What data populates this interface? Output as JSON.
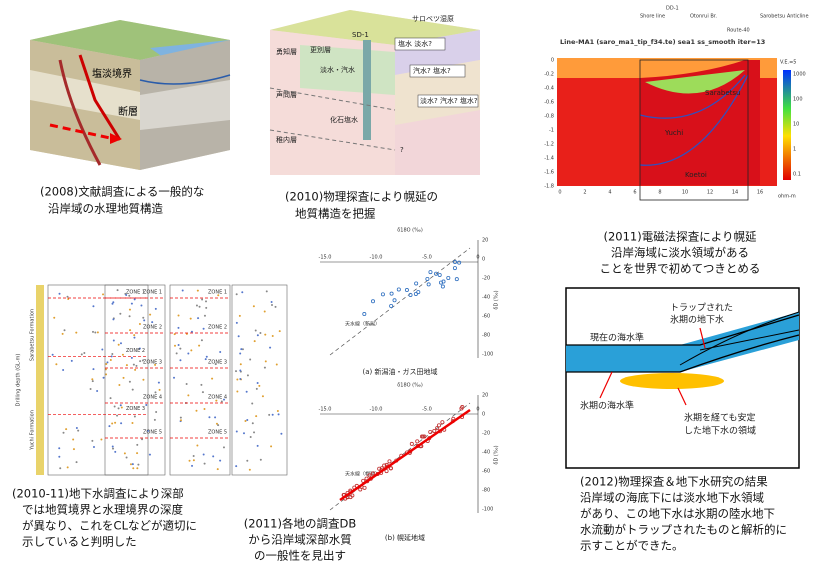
{
  "panels": [
    {
      "caption": [
        "(2008)文献調査による一般的な",
        "沿岸域の水理地質構造"
      ],
      "labels": [
        "塩淡境界",
        "断層"
      ]
    },
    {
      "caption": [
        "(2010)物理探査により幌延の",
        "地質構造を把握"
      ],
      "labels": [
        "サロベツ湿原",
        "SD-1",
        "塩水 淡水?",
        "淡水・汽水",
        "汽水? 塩水?",
        "淡水? 汽水? 塩水?",
        "化石塩水",
        "更別層",
        "勇知層",
        "声問層",
        "稚内層",
        "?"
      ]
    },
    {
      "caption": [
        "(2011)電磁法探査により幌延",
        "沿岸海域に淡水領域がある",
        "ことを世界で初めてつきとめる"
      ],
      "title": "Line-MA1 (saro_ma1_tip_f34.te) sea1 ss_smooth iter=13",
      "top_labels": [
        "DD-1",
        "Shore line",
        "Otonrui Br.",
        "Route-40",
        "Sarobetsu Anticline"
      ],
      "layers": [
        "Sarabetsu",
        "Yuchi",
        "Koetoi"
      ],
      "ve": "V.E.=5",
      "unit": "ohm-m",
      "xticks": [
        "0",
        "2",
        "4",
        "6",
        "8",
        "10",
        "12",
        "14",
        "16"
      ],
      "yticks": [
        "0",
        "-0.2",
        "-0.4",
        "-0.6",
        "-0.8",
        "-1",
        "-1.2",
        "-1.4",
        "-1.6",
        "-1.8"
      ],
      "cticks": [
        "1000",
        "100",
        "10",
        "1",
        "0.1"
      ]
    },
    {
      "caption": [
        "(2010-11)地下水調査により深部",
        "では地質境界と水理境界の深度",
        "が異なり、これをCLなどが適切に",
        "示していると判明した"
      ],
      "zones": [
        [
          "ZONE 1",
          "ZONE 2",
          "ZONE 3"
        ],
        [
          "ZONE 1",
          "ZONE 2",
          "ZONE 3",
          "ZONE 4",
          "ZONE 5"
        ],
        [
          "ZONE 1",
          "ZONE 2",
          "ZONE 3",
          "ZONE 4",
          "ZONE 5"
        ]
      ],
      "axis": "Drilling depth (GL-m)",
      "formations": [
        "Sarabetsu Formation",
        "Yuchi Formation"
      ]
    },
    {
      "caption": [
        "(2011)各地の調査DB",
        "から沿岸域深部水質",
        "の一般性を見出す"
      ],
      "xlabel": "δ18O (‰)",
      "ylabel": "δD (‰)",
      "xticks": [
        "-15.0",
        "-10.0",
        "-5.0",
        "0"
      ],
      "yticks": [
        "20",
        "0",
        "-20",
        "-40",
        "-60",
        "-80",
        "-100"
      ],
      "sub": [
        "(a) 新潟油・ガス田地域",
        "(b) 幌延地域"
      ],
      "notes": [
        "天水線（新潟）",
        "天水線（幌延）"
      ]
    },
    {
      "caption": [
        "(2012)物理探査＆地下水研究の結果",
        "沿岸域の海底下には淡水地下水領域",
        "があり、この地下水は氷期の陸水地下",
        "水流動がトラップされたものと解析的に",
        "示すことができた。"
      ],
      "labels": [
        "現在の海水準",
        "トラップされた",
        "氷期の地下水",
        "氷期の海水準",
        "氷期を経ても安定",
        "した地下水の領域"
      ]
    }
  ]
}
